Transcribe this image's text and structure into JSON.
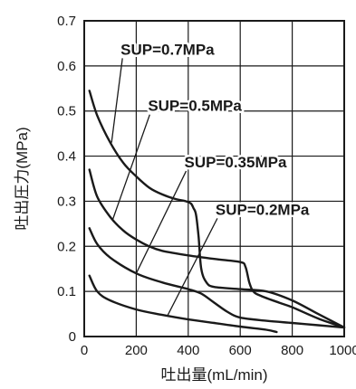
{
  "chart_data": {
    "type": "line",
    "title": "",
    "xlabel": "吐出量(mL/min)",
    "ylabel": "吐出圧力(MPa)",
    "xlim": [
      0,
      1000
    ],
    "ylim": [
      0,
      0.7
    ],
    "x_ticks": [
      "0",
      "200",
      "400",
      "600",
      "800",
      "1000"
    ],
    "y_ticks": [
      "0",
      "0.1",
      "0.2",
      "0.3",
      "0.4",
      "0.5",
      "0.6",
      "0.7"
    ],
    "grid": true,
    "legend": "none",
    "colors": {
      "line": "#1a1a1a",
      "grid": "#1a1a1a",
      "background": "#ffffff"
    },
    "series": [
      {
        "name": "SUP=0.7MPa",
        "x": [
          20,
          50,
          100,
          150,
          200,
          250,
          300,
          350,
          390,
          410,
          420,
          430,
          440,
          450,
          470,
          500,
          600,
          700,
          800,
          900,
          1000
        ],
        "y": [
          0.545,
          0.49,
          0.43,
          0.385,
          0.355,
          0.33,
          0.315,
          0.305,
          0.3,
          0.295,
          0.285,
          0.27,
          0.22,
          0.15,
          0.12,
          0.11,
          0.105,
          0.1,
          0.08,
          0.05,
          0.02
        ]
      },
      {
        "name": "SUP=0.5MPa",
        "x": [
          20,
          50,
          100,
          150,
          200,
          250,
          300,
          400,
          500,
          600,
          620,
          635,
          650,
          680,
          750,
          800,
          900,
          1000
        ],
        "y": [
          0.37,
          0.31,
          0.265,
          0.235,
          0.215,
          0.2,
          0.19,
          0.18,
          0.172,
          0.165,
          0.155,
          0.12,
          0.1,
          0.09,
          0.075,
          0.065,
          0.04,
          0.02
        ]
      },
      {
        "name": "SUP=0.35MPa",
        "x": [
          20,
          50,
          100,
          200,
          300,
          400,
          450,
          500,
          550,
          600,
          700,
          800,
          900,
          1000
        ],
        "y": [
          0.24,
          0.205,
          0.175,
          0.14,
          0.12,
          0.105,
          0.095,
          0.075,
          0.055,
          0.042,
          0.035,
          0.03,
          0.025,
          0.02
        ]
      },
      {
        "name": "SUP=0.2MPa",
        "x": [
          20,
          50,
          100,
          200,
          300,
          400,
          500,
          600,
          700,
          740
        ],
        "y": [
          0.135,
          0.1,
          0.08,
          0.06,
          0.048,
          0.038,
          0.03,
          0.022,
          0.015,
          0.01
        ]
      }
    ],
    "annotations": [
      {
        "text": "SUP=0.7MPa",
        "series": "SUP=0.7MPa",
        "label_x": 140,
        "label_y": 0.625,
        "target_x": 105,
        "target_y": 0.43
      },
      {
        "text": "SUP=0.5MPa",
        "series": "SUP=0.5MPa",
        "label_x": 245,
        "label_y": 0.5,
        "target_x": 110,
        "target_y": 0.26
      },
      {
        "text": "SUP=0.35MPa",
        "series": "SUP=0.35MPa",
        "label_x": 385,
        "label_y": 0.375,
        "target_x": 200,
        "target_y": 0.14
      },
      {
        "text": "SUP=0.2MPa",
        "series": "SUP=0.2MPa",
        "label_x": 505,
        "label_y": 0.27,
        "target_x": 320,
        "target_y": 0.046
      }
    ]
  }
}
